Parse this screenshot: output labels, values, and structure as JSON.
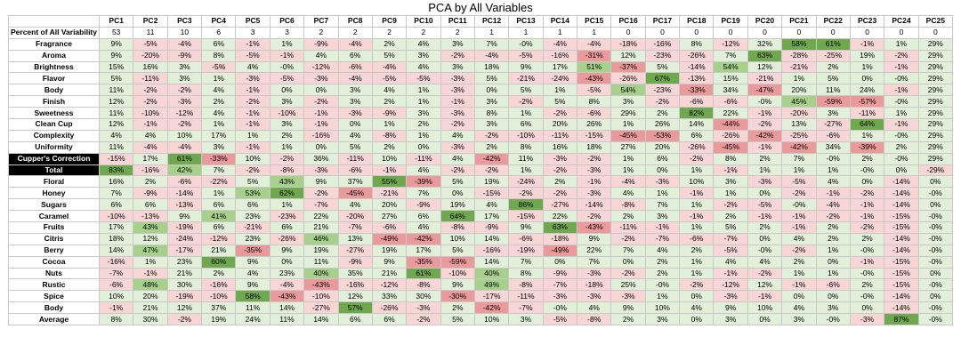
{
  "chart_data": {
    "type": "table",
    "title": "PCA by All Variables",
    "columns": [
      "PC1",
      "PC2",
      "PC3",
      "PC4",
      "PC5",
      "PC6",
      "PC7",
      "PC8",
      "PC9",
      "PC10",
      "PC11",
      "PC12",
      "PC13",
      "PC14",
      "PC15",
      "PC16",
      "PC17",
      "PC18",
      "PC19",
      "PC20",
      "PC21",
      "PC22",
      "PC23",
      "PC24",
      "PC25"
    ],
    "variability": {
      "label": "Percent of All Variability",
      "values": [
        "53",
        "11",
        "10",
        "6",
        "3",
        "3",
        "2",
        "2",
        "2",
        "2",
        "2",
        "1",
        "1",
        "1",
        "1",
        "0",
        "0",
        "0",
        "0",
        "0",
        "0",
        "0",
        "0",
        "0",
        "0"
      ]
    },
    "rows": [
      {
        "label": "Fragrance",
        "values": [
          "9%",
          "-5%",
          "-4%",
          "6%",
          "-1%",
          "1%",
          "-9%",
          "-4%",
          "2%",
          "4%",
          "3%",
          "7%",
          "-0%",
          "-4%",
          "-4%",
          "-18%",
          "-16%",
          "8%",
          "-12%",
          "32%",
          "58%",
          "61%",
          "-1%",
          "1%",
          "29%"
        ]
      },
      {
        "label": "Aroma",
        "values": [
          "9%",
          "-20%",
          "-9%",
          "8%",
          "-5%",
          "-1%",
          "4%",
          "6%",
          "5%",
          "3%",
          "-2%",
          "-4%",
          "-5%",
          "-16%",
          "-31%",
          "12%",
          "-23%",
          "-26%",
          "7%",
          "63%",
          "-28%",
          "-25%",
          "19%",
          "-2%",
          "29%"
        ]
      },
      {
        "label": "Brightness",
        "values": [
          "15%",
          "16%",
          "3%",
          "-5%",
          "4%",
          "-0%",
          "-12%",
          "-6%",
          "-4%",
          "4%",
          "3%",
          "18%",
          "9%",
          "17%",
          "51%",
          "-37%",
          "5%",
          "-14%",
          "54%",
          "12%",
          "-21%",
          "2%",
          "1%",
          "-1%",
          "29%"
        ]
      },
      {
        "label": "Flavor",
        "values": [
          "5%",
          "-11%",
          "3%",
          "1%",
          "-3%",
          "-5%",
          "-3%",
          "-4%",
          "-5%",
          "-5%",
          "-3%",
          "5%",
          "-21%",
          "-24%",
          "-43%",
          "-26%",
          "67%",
          "-13%",
          "15%",
          "-21%",
          "1%",
          "5%",
          "0%",
          "-0%",
          "29%"
        ]
      },
      {
        "label": "Body",
        "values": [
          "11%",
          "-2%",
          "-2%",
          "4%",
          "-1%",
          "0%",
          "0%",
          "3%",
          "4%",
          "1%",
          "-3%",
          "0%",
          "5%",
          "1%",
          "-5%",
          "54%",
          "-23%",
          "-33%",
          "34%",
          "-47%",
          "20%",
          "11%",
          "24%",
          "-1%",
          "29%"
        ]
      },
      {
        "label": "Finish",
        "values": [
          "12%",
          "-2%",
          "-3%",
          "2%",
          "-2%",
          "3%",
          "-2%",
          "3%",
          "2%",
          "1%",
          "-1%",
          "3%",
          "-2%",
          "5%",
          "8%",
          "3%",
          "-2%",
          "-6%",
          "-6%",
          "-0%",
          "45%",
          "-59%",
          "-57%",
          "-0%",
          "29%"
        ]
      },
      {
        "label": "Sweetness",
        "values": [
          "11%",
          "-10%",
          "-12%",
          "4%",
          "-1%",
          "-10%",
          "-1%",
          "-3%",
          "-9%",
          "3%",
          "-3%",
          "8%",
          "1%",
          "-2%",
          "-6%",
          "29%",
          "2%",
          "82%",
          "22%",
          "-1%",
          "-20%",
          "3%",
          "-11%",
          "1%",
          "29%"
        ]
      },
      {
        "label": "Clean Cup",
        "values": [
          "12%",
          "-1%",
          "-2%",
          "1%",
          "-1%",
          "3%",
          "-1%",
          "0%",
          "1%",
          "2%",
          "-2%",
          "3%",
          "6%",
          "20%",
          "26%",
          "1%",
          "26%",
          "14%",
          "-44%",
          "-2%",
          "13%",
          "-27%",
          "64%",
          "-1%",
          "29%"
        ]
      },
      {
        "label": "Complexity",
        "values": [
          "4%",
          "4%",
          "10%",
          "17%",
          "1%",
          "2%",
          "-16%",
          "4%",
          "-8%",
          "1%",
          "4%",
          "-2%",
          "-10%",
          "-11%",
          "-15%",
          "-45%",
          "-53%",
          "6%",
          "-26%",
          "-42%",
          "-25%",
          "-6%",
          "1%",
          "-0%",
          "29%"
        ]
      },
      {
        "label": "Uniformity",
        "values": [
          "11%",
          "-4%",
          "-4%",
          "3%",
          "-1%",
          "1%",
          "0%",
          "5%",
          "2%",
          "0%",
          "-3%",
          "2%",
          "8%",
          "16%",
          "18%",
          "27%",
          "20%",
          "-26%",
          "-45%",
          "-1%",
          "-42%",
          "34%",
          "-39%",
          "2%",
          "29%"
        ]
      },
      {
        "label": "Cupper's Correction",
        "dark": true,
        "values": [
          "-15%",
          "17%",
          "61%",
          "-33%",
          "10%",
          "-2%",
          "36%",
          "-11%",
          "10%",
          "-11%",
          "4%",
          "-42%",
          "11%",
          "-3%",
          "-2%",
          "1%",
          "6%",
          "-2%",
          "8%",
          "2%",
          "7%",
          "-0%",
          "2%",
          "-0%",
          "29%"
        ]
      },
      {
        "label": "Total",
        "dark": true,
        "values": [
          "83%",
          "-16%",
          "42%",
          "7%",
          "-2%",
          "-8%",
          "-3%",
          "-6%",
          "-1%",
          "4%",
          "-2%",
          "-2%",
          "1%",
          "-2%",
          "-3%",
          "1%",
          "0%",
          "1%",
          "-1%",
          "1%",
          "1%",
          "1%",
          "-0%",
          "0%",
          "-29%"
        ]
      },
      {
        "label": "Floral",
        "values": [
          "16%",
          "2%",
          "-6%",
          "-22%",
          "5%",
          "43%",
          "9%",
          "37%",
          "55%",
          "-39%",
          "5%",
          "19%",
          "-24%",
          "2%",
          "-1%",
          "-4%",
          "-3%",
          "10%",
          "3%",
          "-3%",
          "-5%",
          "4%",
          "0%",
          "-14%",
          "0%"
        ]
      },
      {
        "label": "Honey",
        "values": [
          "7%",
          "-9%",
          "-14%",
          "1%",
          "53%",
          "62%",
          "-2%",
          "-45%",
          "-21%",
          "7%",
          "0%",
          "-15%",
          "-2%",
          "-2%",
          "-3%",
          "4%",
          "1%",
          "-1%",
          "1%",
          "0%",
          "-2%",
          "-1%",
          "-2%",
          "-14%",
          "-0%"
        ]
      },
      {
        "label": "Sugars",
        "values": [
          "6%",
          "6%",
          "-13%",
          "6%",
          "6%",
          "1%",
          "-7%",
          "4%",
          "20%",
          "-9%",
          "19%",
          "4%",
          "86%",
          "-27%",
          "-14%",
          "-8%",
          "7%",
          "1%",
          "-2%",
          "-5%",
          "-0%",
          "-4%",
          "-1%",
          "-14%",
          "0%"
        ]
      },
      {
        "label": "Caramel",
        "values": [
          "-10%",
          "-13%",
          "9%",
          "41%",
          "23%",
          "-23%",
          "22%",
          "-20%",
          "27%",
          "6%",
          "64%",
          "17%",
          "-15%",
          "22%",
          "-2%",
          "2%",
          "3%",
          "-1%",
          "2%",
          "-1%",
          "-1%",
          "-2%",
          "-1%",
          "-15%",
          "-0%"
        ]
      },
      {
        "label": "Fruits",
        "values": [
          "17%",
          "43%",
          "-19%",
          "6%",
          "-21%",
          "6%",
          "21%",
          "-7%",
          "-6%",
          "4%",
          "-8%",
          "-9%",
          "9%",
          "63%",
          "-43%",
          "-11%",
          "-1%",
          "1%",
          "5%",
          "2%",
          "-1%",
          "2%",
          "-2%",
          "-15%",
          "-0%"
        ]
      },
      {
        "label": "Citris",
        "values": [
          "18%",
          "12%",
          "-24%",
          "-12%",
          "23%",
          "-26%",
          "46%",
          "13%",
          "-49%",
          "-42%",
          "10%",
          "14%",
          "-6%",
          "-18%",
          "9%",
          "-2%",
          "-7%",
          "-6%",
          "-7%",
          "0%",
          "4%",
          "2%",
          "2%",
          "-14%",
          "-0%"
        ]
      },
      {
        "label": "Berry",
        "values": [
          "14%",
          "47%",
          "-17%",
          "21%",
          "-35%",
          "9%",
          "19%",
          "-27%",
          "19%",
          "17%",
          "5%",
          "-16%",
          "-19%",
          "-49%",
          "22%",
          "7%",
          "4%",
          "2%",
          "-5%",
          "-0%",
          "-2%",
          "1%",
          "-0%",
          "-14%",
          "-0%"
        ]
      },
      {
        "label": "Cocoa",
        "values": [
          "-16%",
          "1%",
          "23%",
          "60%",
          "9%",
          "0%",
          "11%",
          "-9%",
          "9%",
          "-35%",
          "-59%",
          "14%",
          "7%",
          "0%",
          "7%",
          "0%",
          "2%",
          "1%",
          "4%",
          "4%",
          "2%",
          "0%",
          "-1%",
          "-15%",
          "-0%"
        ]
      },
      {
        "label": "Nuts",
        "values": [
          "-7%",
          "-1%",
          "21%",
          "2%",
          "4%",
          "23%",
          "40%",
          "35%",
          "21%",
          "61%",
          "-10%",
          "40%",
          "8%",
          "-9%",
          "-3%",
          "-2%",
          "2%",
          "1%",
          "-1%",
          "-2%",
          "1%",
          "1%",
          "-0%",
          "-15%",
          "0%"
        ]
      },
      {
        "label": "Rustic",
        "values": [
          "-6%",
          "48%",
          "30%",
          "-16%",
          "9%",
          "-4%",
          "-43%",
          "-16%",
          "-12%",
          "-8%",
          "9%",
          "49%",
          "-8%",
          "-7%",
          "-18%",
          "25%",
          "-0%",
          "-2%",
          "-12%",
          "12%",
          "-1%",
          "-6%",
          "2%",
          "-15%",
          "-0%"
        ]
      },
      {
        "label": "Spice",
        "values": [
          "10%",
          "20%",
          "-19%",
          "-10%",
          "58%",
          "-43%",
          "-10%",
          "12%",
          "33%",
          "30%",
          "-30%",
          "-17%",
          "-11%",
          "-3%",
          "-3%",
          "-3%",
          "1%",
          "0%",
          "-3%",
          "-1%",
          "0%",
          "0%",
          "-0%",
          "-14%",
          "0%"
        ]
      },
      {
        "label": "Body",
        "values": [
          "-1%",
          "21%",
          "12%",
          "37%",
          "11%",
          "14%",
          "-27%",
          "57%",
          "-26%",
          "-3%",
          "2%",
          "-42%",
          "-7%",
          "-0%",
          "4%",
          "9%",
          "10%",
          "4%",
          "9%",
          "10%",
          "4%",
          "3%",
          "0%",
          "-14%",
          "-0%"
        ]
      },
      {
        "label": "Average",
        "values": [
          "8%",
          "30%",
          "-2%",
          "19%",
          "24%",
          "11%",
          "14%",
          "6%",
          "6%",
          "-2%",
          "5%",
          "10%",
          "3%",
          "-5%",
          "-8%",
          "2%",
          "3%",
          "0%",
          "3%",
          "0%",
          "3%",
          "-0%",
          "-3%",
          "87%",
          "-0%"
        ]
      }
    ],
    "colors": {
      "pos_strong": "#70a84f",
      "pos_mid": "#a8d08d",
      "pos_light": "#e2efd9",
      "neg_strong": "#ea9a9a",
      "neg_light": "#f8d6d6",
      "dark_label_bg": "#000000",
      "dark_label_fg": "#ffffff"
    }
  }
}
